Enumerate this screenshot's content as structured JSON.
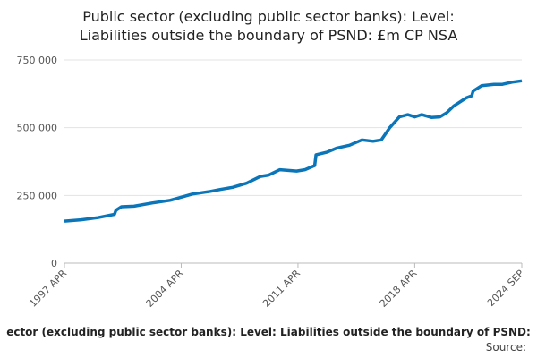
{
  "chart_data": {
    "type": "line",
    "title": [
      "Public sector (excluding public sector banks): Level:",
      "Liabilities outside the boundary of PSND: £m CP NSA"
    ],
    "footer": "ector (excluding public sector banks): Level: Liabilities outside the boundary of PSND:",
    "source": "Source:",
    "x": [
      "1997 APR",
      "1998 APR",
      "1999 APR",
      "2000 APR",
      "2000 MAY",
      "2000 SEP",
      "2001 JUN",
      "2002 JUL",
      "2003 AUG",
      "2004 DEC",
      "2006 JAN",
      "2006 AUG",
      "2007 MAY",
      "2008 MAR",
      "2009 JAN",
      "2009 JUL",
      "2010 MAR",
      "2011 MAR",
      "2011 SEP",
      "2012 APR",
      "2012 MAY",
      "2013 JAN",
      "2013 AUG",
      "2014 MAY",
      "2015 FEB",
      "2015 OCT",
      "2016 APR",
      "2016 OCT",
      "2017 MAY",
      "2017 NOV",
      "2018 APR",
      "2018 SEP",
      "2019 APR",
      "2019 OCT",
      "2020 MAR",
      "2020 AUG",
      "2021 MAY",
      "2021 SEP",
      "2021 OCT",
      "2022 APR",
      "2023 JAN",
      "2023 JUL",
      "2024 FEB",
      "2024 SEP"
    ],
    "series": [
      {
        "color": "#0a75b8",
        "values": [
          155000,
          160000,
          168000,
          180000,
          195000,
          208000,
          210000,
          222000,
          232000,
          255000,
          265000,
          272000,
          280000,
          295000,
          320000,
          325000,
          345000,
          340000,
          345000,
          360000,
          400000,
          410000,
          425000,
          435000,
          455000,
          450000,
          455000,
          500000,
          540000,
          548000,
          540000,
          548000,
          538000,
          540000,
          555000,
          580000,
          610000,
          618000,
          635000,
          655000,
          660000,
          660000,
          668000,
          673000
        ]
      }
    ],
    "ylim": [
      0,
      750000
    ],
    "yticks": [
      0,
      {
        "value": 250000,
        "label": "250 000"
      },
      {
        "value": 500000,
        "label": "500 000"
      },
      {
        "value": 750000,
        "label": "750 000"
      }
    ],
    "xticks": [
      "1997 APR",
      "2004 APR",
      "2011 APR",
      "2018 APR",
      "2024 SEP"
    ],
    "grid": true
  }
}
